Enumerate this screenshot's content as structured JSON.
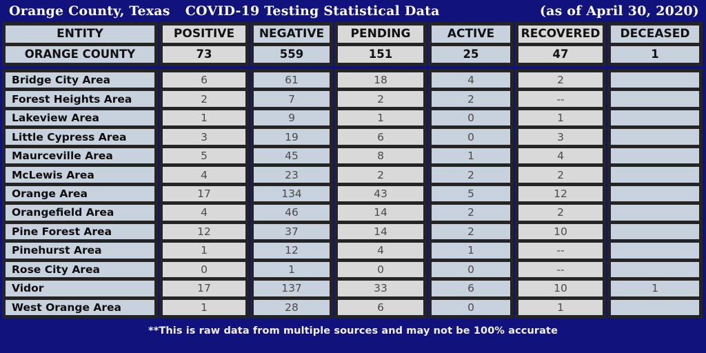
{
  "header": {
    "title_left": "Orange County, Texas",
    "title_mid": "COVID-19 Testing Statistical Data",
    "title_right": "(as of April 30, 2020)"
  },
  "table": {
    "columns": [
      "ENTITY",
      "POSITIVE",
      "NEGATIVE",
      "PENDING",
      "ACTIVE",
      "RECOVERED",
      "DECEASED"
    ],
    "total_row": {
      "entity": "ORANGE COUNTY",
      "values": [
        "73",
        "559",
        "151",
        "25",
        "47",
        "1"
      ]
    },
    "rows": [
      {
        "entity": "Bridge City Area",
        "values": [
          "6",
          "61",
          "18",
          "4",
          "2",
          ""
        ]
      },
      {
        "entity": "Forest Heights Area",
        "values": [
          "2",
          "7",
          "2",
          "2",
          "--",
          ""
        ]
      },
      {
        "entity": "Lakeview Area",
        "values": [
          "1",
          "9",
          "1",
          "0",
          "1",
          ""
        ]
      },
      {
        "entity": "Little Cypress Area",
        "values": [
          "3",
          "19",
          "6",
          "0",
          "3",
          ""
        ]
      },
      {
        "entity": "Maurceville Area",
        "values": [
          "5",
          "45",
          "8",
          "1",
          "4",
          ""
        ]
      },
      {
        "entity": "McLewis Area",
        "values": [
          "4",
          "23",
          "2",
          "2",
          "2",
          ""
        ]
      },
      {
        "entity": "Orange Area",
        "values": [
          "17",
          "134",
          "43",
          "5",
          "12",
          ""
        ]
      },
      {
        "entity": "Orangefield Area",
        "values": [
          "4",
          "46",
          "14",
          "2",
          "2",
          ""
        ]
      },
      {
        "entity": "Pine Forest Area",
        "values": [
          "12",
          "37",
          "14",
          "2",
          "10",
          ""
        ]
      },
      {
        "entity": "Pinehurst Area",
        "values": [
          "1",
          "12",
          "4",
          "1",
          "--",
          ""
        ]
      },
      {
        "entity": "Rose City Area",
        "values": [
          "0",
          "1",
          "0",
          "0",
          "--",
          ""
        ]
      },
      {
        "entity": "Vidor",
        "values": [
          "17",
          "137",
          "33",
          "6",
          "10",
          "1"
        ]
      },
      {
        "entity": "West Orange Area",
        "values": [
          "1",
          "28",
          "6",
          "0",
          "1",
          ""
        ]
      }
    ]
  },
  "footer": {
    "note": "**This is raw data from multiple sources and may not be 100% accurate"
  },
  "colors": {
    "background": "#12127D",
    "border": "#242424",
    "cell_gray": "#D9D9D9",
    "cell_blue_gray": "#C8D1DE",
    "label_text": "#0D0D0D",
    "number_text": "#4A4A4A",
    "title_text": "#FFFFFF"
  }
}
